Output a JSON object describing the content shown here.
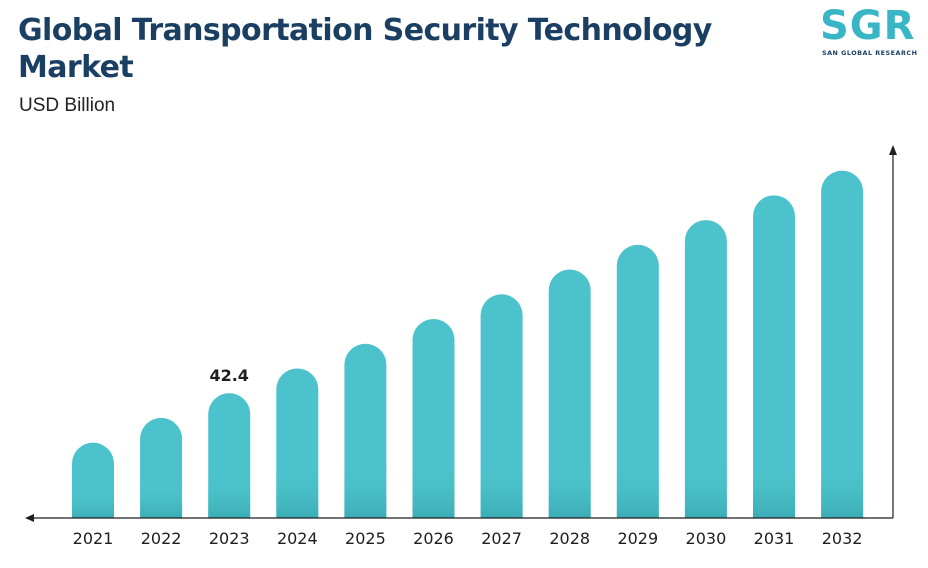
{
  "header": {
    "title": "Global Transportation Security Technology Market",
    "unit": "USD Billion"
  },
  "logo": {
    "letters": "SGR",
    "subtitle": "SAN GLOBAL RESEARCH"
  },
  "colors": {
    "bar": "#4cc3cc",
    "bar_shadow": "#3aa7b0",
    "title": "#1b3f63",
    "axis": "#1e1e1e"
  },
  "chart_data": {
    "type": "bar",
    "title": "Global Transportation Security Technology Market",
    "ylabel": "USD Billion",
    "categories": [
      "2021",
      "2022",
      "2023",
      "2024",
      "2025",
      "2026",
      "2027",
      "2028",
      "2029",
      "2030",
      "2031",
      "2032"
    ],
    "values": [
      25.6,
      34.0,
      42.4,
      50.8,
      59.2,
      67.6,
      76.0,
      84.4,
      92.8,
      101.2,
      109.6,
      118.0
    ],
    "data_labels": [
      {
        "index": 2,
        "text": "42.4"
      }
    ],
    "ylim": [
      0,
      125
    ],
    "y_axis_ticks": false,
    "grid": false,
    "legend": "none"
  }
}
